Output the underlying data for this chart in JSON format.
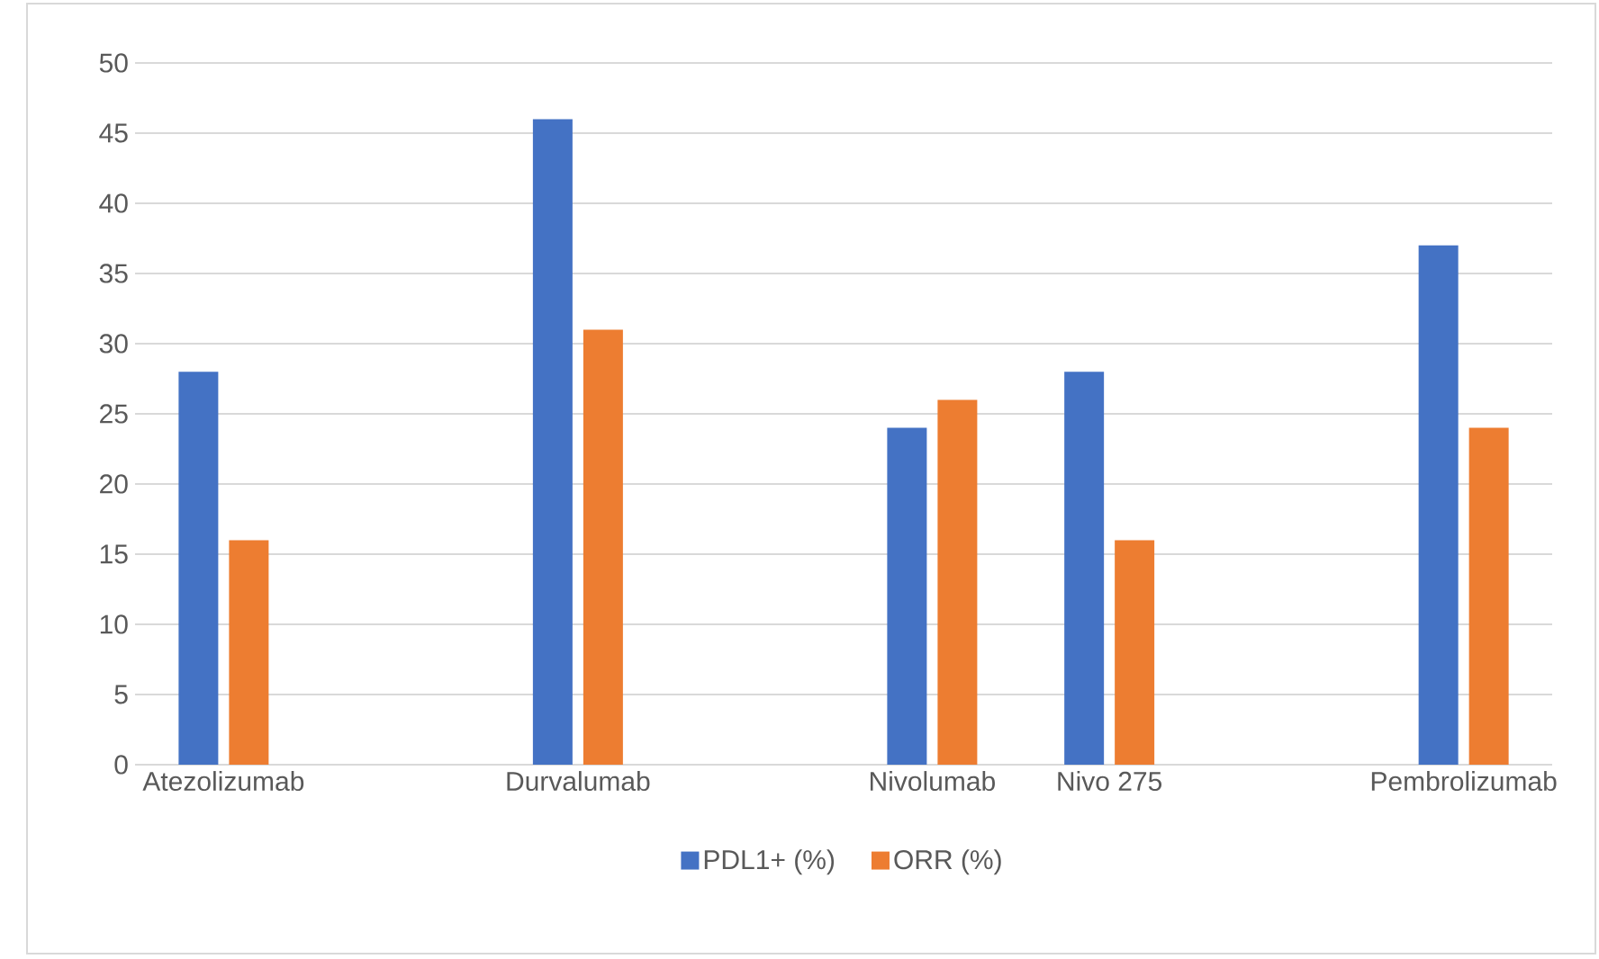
{
  "chart_data": {
    "type": "bar",
    "categories": [
      "Atezolizumab",
      null,
      "Durvalumab",
      null,
      "Nivolumab",
      "Nivo 275",
      null,
      "Pembrolizumab"
    ],
    "series": [
      {
        "name": "PDL1+ (%)",
        "color": "#4472c4",
        "values": [
          28,
          null,
          46,
          null,
          24,
          28,
          null,
          37
        ]
      },
      {
        "name": "ORR (%)",
        "color": "#ed7d31",
        "values": [
          16,
          null,
          31,
          null,
          26,
          16,
          null,
          24
        ]
      }
    ],
    "ylim": [
      0,
      50
    ],
    "yticks": [
      0,
      5,
      10,
      15,
      20,
      25,
      30,
      35,
      40,
      45,
      50
    ],
    "grid": "y",
    "legend": "bottom"
  }
}
